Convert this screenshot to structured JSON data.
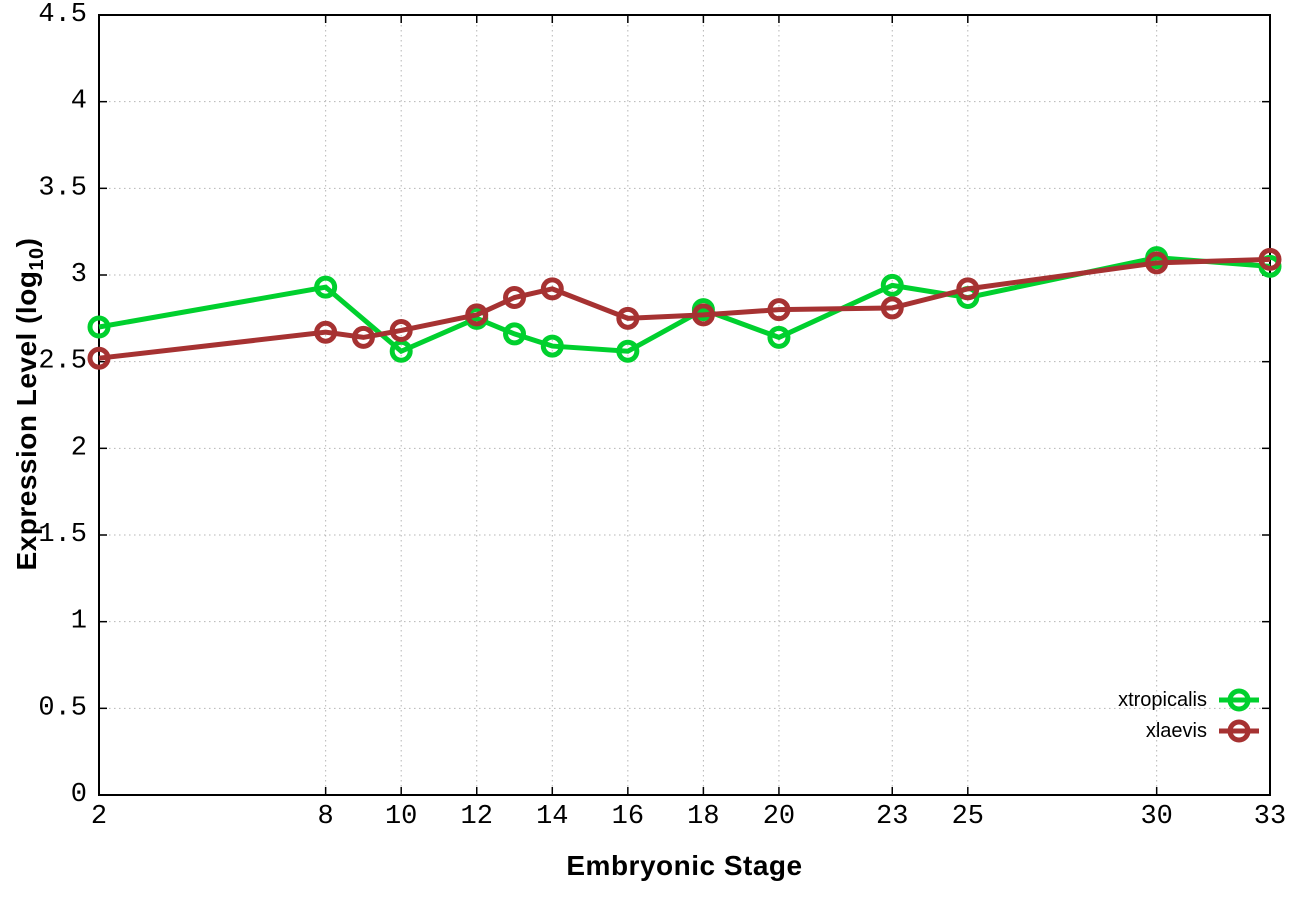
{
  "page": {
    "background": "#ffffff",
    "text_color": "#000000"
  },
  "chart_data": {
    "type": "line",
    "title": "",
    "xlabel": "Embryonic Stage",
    "ylabel_prefix": "Expression Level (log",
    "ylabel_sub": "10",
    "ylabel_suffix": ")",
    "xlim": [
      2,
      33
    ],
    "ylim": [
      0,
      4.5
    ],
    "x_ticks": [
      2,
      8,
      10,
      12,
      14,
      16,
      18,
      20,
      23,
      25,
      30,
      33
    ],
    "y_ticks": [
      0,
      0.5,
      1,
      1.5,
      2,
      2.5,
      3,
      3.5,
      4,
      4.5
    ],
    "grid": true,
    "grid_color": "#b5b5b5",
    "axis_color": "#000000",
    "legend_position": "inside-bottom-right",
    "marker_style": "open-circle",
    "series": [
      {
        "name": "xtropicalis",
        "color": "#00d02e",
        "x": [
          2,
          8,
          10,
          12,
          13,
          14,
          16,
          18,
          20,
          23,
          25,
          30,
          33
        ],
        "y": [
          2.7,
          2.93,
          2.56,
          2.75,
          2.66,
          2.59,
          2.56,
          2.8,
          2.64,
          2.94,
          2.87,
          3.1,
          3.05
        ]
      },
      {
        "name": "xlaevis",
        "color": "#a63232",
        "x": [
          2,
          8,
          9,
          10,
          12,
          13,
          14,
          16,
          18,
          20,
          23,
          25,
          30,
          33
        ],
        "y": [
          2.52,
          2.67,
          2.64,
          2.68,
          2.77,
          2.87,
          2.92,
          2.75,
          2.77,
          2.8,
          2.81,
          2.92,
          3.07,
          3.09
        ]
      }
    ]
  }
}
